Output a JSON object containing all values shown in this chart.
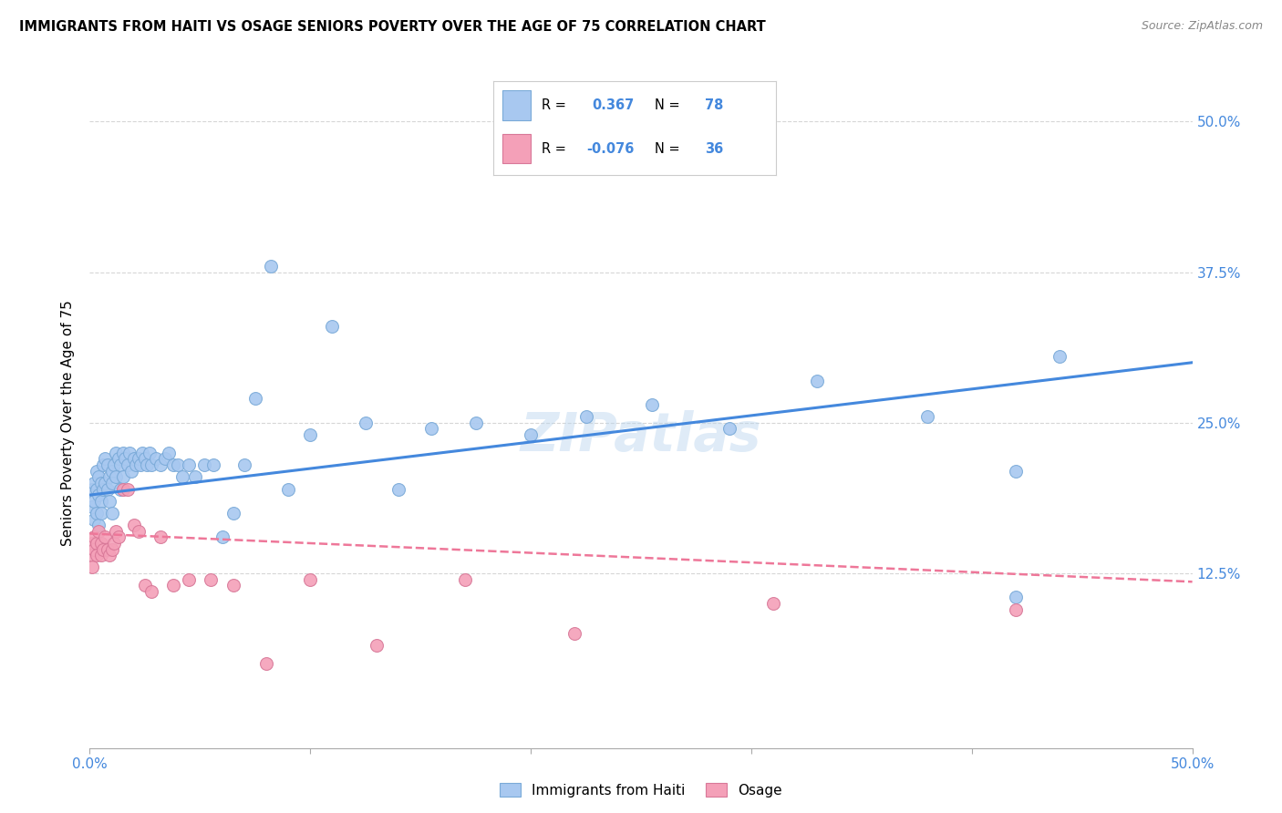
{
  "title": "IMMIGRANTS FROM HAITI VS OSAGE SENIORS POVERTY OVER THE AGE OF 75 CORRELATION CHART",
  "source": "Source: ZipAtlas.com",
  "ylabel": "Seniors Poverty Over the Age of 75",
  "xlabel_haiti": "Immigrants from Haiti",
  "xlabel_osage": "Osage",
  "xlim": [
    0.0,
    0.5
  ],
  "ylim": [
    -0.02,
    0.52
  ],
  "xtick_positions": [
    0.0,
    0.1,
    0.2,
    0.3,
    0.4,
    0.5
  ],
  "xtick_labels": [
    "0.0%",
    "",
    "",
    "",
    "",
    "50.0%"
  ],
  "ytick_positions": [
    0.125,
    0.25,
    0.375,
    0.5
  ],
  "ytick_labels_right": [
    "12.5%",
    "25.0%",
    "37.5%",
    "50.0%"
  ],
  "haiti_R": 0.367,
  "haiti_N": 78,
  "osage_R": -0.076,
  "osage_N": 36,
  "haiti_color": "#a8c8f0",
  "haiti_edge_color": "#7aaad8",
  "osage_color": "#f4a0b8",
  "osage_edge_color": "#d87898",
  "haiti_line_color": "#4488dd",
  "osage_line_color": "#ee7799",
  "r_val_color": "#4488dd",
  "n_val_color": "#4488dd",
  "tick_color": "#4488dd",
  "watermark": "ZIPatlas",
  "haiti_line_x": [
    0.0,
    0.5
  ],
  "haiti_line_y": [
    0.19,
    0.3
  ],
  "osage_line_x": [
    0.0,
    0.5
  ],
  "osage_line_y": [
    0.158,
    0.118
  ],
  "haiti_scatter_x": [
    0.001,
    0.001,
    0.002,
    0.002,
    0.002,
    0.003,
    0.003,
    0.003,
    0.004,
    0.004,
    0.004,
    0.005,
    0.005,
    0.005,
    0.006,
    0.006,
    0.007,
    0.007,
    0.008,
    0.008,
    0.009,
    0.009,
    0.01,
    0.01,
    0.01,
    0.011,
    0.012,
    0.012,
    0.013,
    0.014,
    0.014,
    0.015,
    0.015,
    0.016,
    0.017,
    0.018,
    0.019,
    0.02,
    0.021,
    0.022,
    0.023,
    0.024,
    0.025,
    0.026,
    0.027,
    0.028,
    0.03,
    0.032,
    0.034,
    0.036,
    0.038,
    0.04,
    0.042,
    0.045,
    0.048,
    0.052,
    0.056,
    0.06,
    0.065,
    0.07,
    0.075,
    0.082,
    0.09,
    0.1,
    0.11,
    0.125,
    0.14,
    0.155,
    0.175,
    0.2,
    0.225,
    0.255,
    0.29,
    0.33,
    0.38,
    0.42,
    0.42,
    0.44
  ],
  "haiti_scatter_y": [
    0.195,
    0.18,
    0.2,
    0.185,
    0.17,
    0.21,
    0.195,
    0.175,
    0.205,
    0.19,
    0.165,
    0.2,
    0.185,
    0.175,
    0.215,
    0.195,
    0.22,
    0.2,
    0.215,
    0.195,
    0.205,
    0.185,
    0.21,
    0.2,
    0.175,
    0.215,
    0.225,
    0.205,
    0.22,
    0.215,
    0.195,
    0.225,
    0.205,
    0.22,
    0.215,
    0.225,
    0.21,
    0.22,
    0.215,
    0.22,
    0.215,
    0.225,
    0.22,
    0.215,
    0.225,
    0.215,
    0.22,
    0.215,
    0.22,
    0.225,
    0.215,
    0.215,
    0.205,
    0.215,
    0.205,
    0.215,
    0.215,
    0.155,
    0.175,
    0.215,
    0.27,
    0.38,
    0.195,
    0.24,
    0.33,
    0.25,
    0.195,
    0.245,
    0.25,
    0.24,
    0.255,
    0.265,
    0.245,
    0.285,
    0.255,
    0.105,
    0.21,
    0.305
  ],
  "osage_scatter_x": [
    0.001,
    0.001,
    0.001,
    0.002,
    0.002,
    0.003,
    0.003,
    0.004,
    0.005,
    0.005,
    0.006,
    0.007,
    0.008,
    0.009,
    0.01,
    0.011,
    0.012,
    0.013,
    0.015,
    0.017,
    0.02,
    0.022,
    0.025,
    0.028,
    0.032,
    0.038,
    0.045,
    0.055,
    0.065,
    0.08,
    0.1,
    0.13,
    0.17,
    0.22,
    0.31,
    0.42
  ],
  "osage_scatter_y": [
    0.15,
    0.14,
    0.13,
    0.155,
    0.145,
    0.15,
    0.14,
    0.16,
    0.15,
    0.14,
    0.145,
    0.155,
    0.145,
    0.14,
    0.145,
    0.15,
    0.16,
    0.155,
    0.195,
    0.195,
    0.165,
    0.16,
    0.115,
    0.11,
    0.155,
    0.115,
    0.12,
    0.12,
    0.115,
    0.05,
    0.12,
    0.065,
    0.12,
    0.075,
    0.1,
    0.095
  ]
}
